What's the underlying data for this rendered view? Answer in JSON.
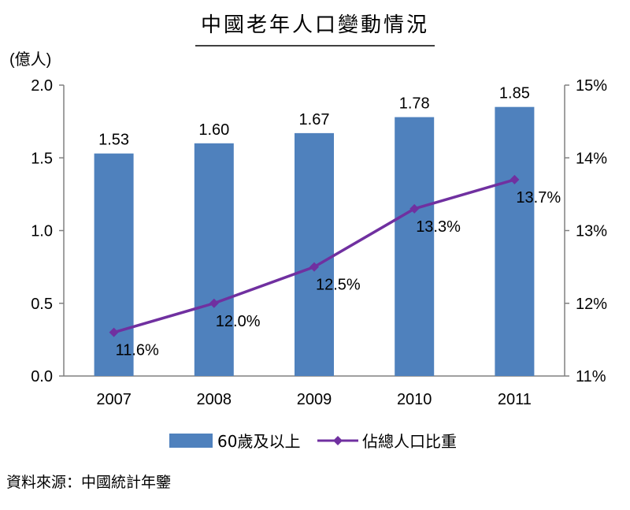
{
  "chart_data": {
    "type": "bar+line",
    "title": "中國老年人口變動情況",
    "y_left_unit": "(億人)",
    "categories": [
      "2007",
      "2008",
      "2009",
      "2010",
      "2011"
    ],
    "bar_series": {
      "name": "60歲及以上",
      "values": [
        1.53,
        1.6,
        1.67,
        1.78,
        1.85
      ],
      "labels": [
        "1.53",
        "1.60",
        "1.67",
        "1.78",
        "1.85"
      ],
      "color": "#4f81bd"
    },
    "line_series": {
      "name": "佔總人口比重",
      "values": [
        11.6,
        12.0,
        12.5,
        13.3,
        13.7
      ],
      "labels": [
        "11.6%",
        "12.0%",
        "12.5%",
        "13.3%",
        "13.7%"
      ],
      "color": "#7030a0"
    },
    "y_left": {
      "min": 0,
      "max": 2.0,
      "ticks": [
        "0.0",
        "0.5",
        "1.0",
        "1.5",
        "2.0"
      ]
    },
    "y_right": {
      "min": 11,
      "max": 15,
      "ticks": [
        "11%",
        "12%",
        "13%",
        "14%",
        "15%"
      ]
    },
    "grid": false,
    "legend": "bottom"
  },
  "source": "資料來源：中國統計年鑒"
}
